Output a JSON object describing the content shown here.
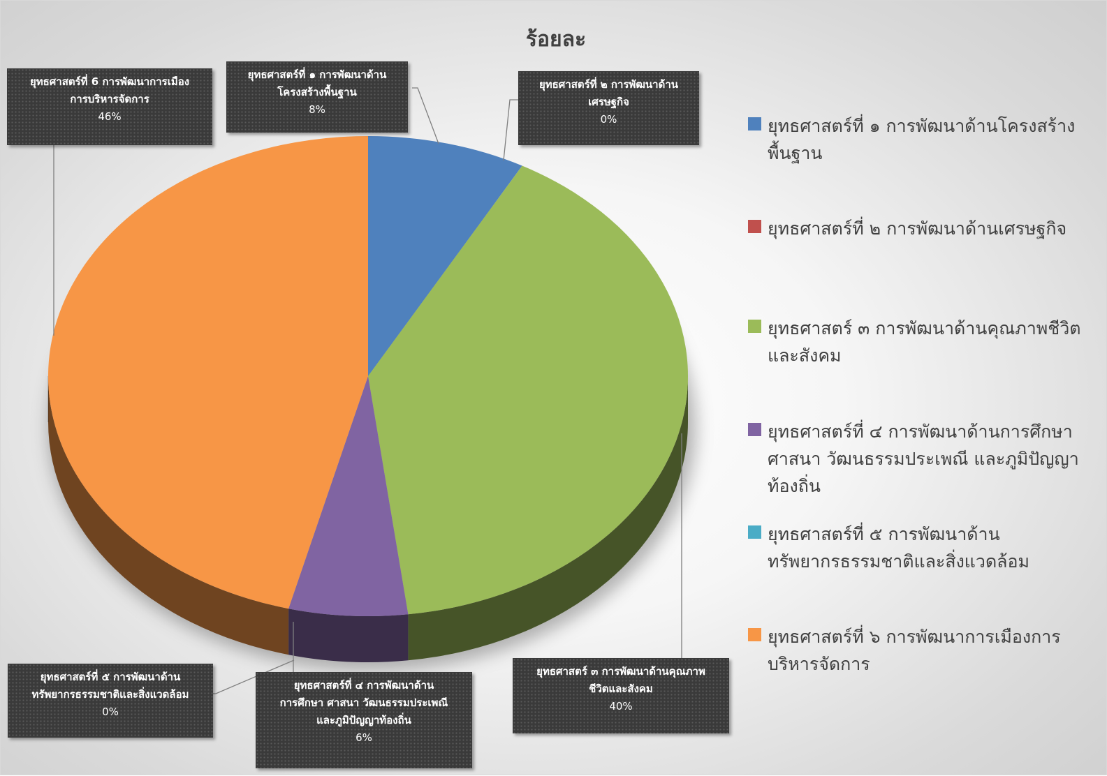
{
  "chart_data": {
    "type": "pie",
    "title": "ร้อยละ",
    "legend_position": "right",
    "categories": [
      "ยุทธศาสตร์ที่ ๑ การพัฒนาด้านโครงสร้างพื้นฐาน",
      "ยุทธศาสตร์ที่ ๒ การพัฒนาด้านเศรษฐกิจ",
      "ยุทธศาสตร์ ๓ การพัฒนาด้านคุณภาพชีวิตและสังคม",
      "ยุทธศาสตร์ที่ ๔ การพัฒนาด้านการศึกษา ศาสนา วัฒนธรรมประเพณี และภูมิปัญญาท้องถิ่น",
      "ยุทธศาสตร์ที่ ๕ การพัฒนาด้านทรัพยากรธรรมชาติและสิ่งแวดล้อม",
      "ยุทธศาสตร์ที่ 6 การพัฒนาการเมืองการบริหารจัดการ"
    ],
    "values": [
      8,
      0,
      40,
      6,
      0,
      46
    ],
    "colors": [
      "#4f81bd",
      "#c0504d",
      "#9bbb59",
      "#8064a2",
      "#4bacc6",
      "#f79646"
    ],
    "legend_labels": [
      "ยุทธศาสตร์ที่ ๑ การพัฒนาด้านโครงสร้าง\nพื้นฐาน",
      "ยุทธศาสตร์ที่ ๒ การพัฒนาด้านเศรษฐกิจ",
      "ยุทธศาสตร์ ๓ การพัฒนาด้านคุณภาพชีวิต\nและสังคม",
      "ยุทธศาสตร์ที่ ๔ การพัฒนาด้านการศึกษา\nศาสนา วัฒนธรรมประเพณี และภูมิปัญญา\nท้องถิ่น",
      "ยุทธศาสตร์ที่ ๕ การพัฒนาด้าน\nทรัพยากรธรรมชาติและสิ่งแวดล้อม",
      "ยุทธศาสตร์ที่ ๖ การพัฒนาการเมืองการ\nบริหารจัดการ"
    ],
    "data_labels": [
      {
        "category": "ยุทธศาสตร์ที่ ๑ การพัฒนาด้าน\nโครงสร้างพื้นฐาน",
        "percent": "8%"
      },
      {
        "category": "ยุทธศาสตร์ที่ ๒ การพัฒนาด้าน\nเศรษฐกิจ",
        "percent": "0%"
      },
      {
        "category": "ยุทธศาสตร์ ๓ การพัฒนาด้านคุณภาพ\nชีวิตและสังคม",
        "percent": "40%"
      },
      {
        "category": "ยุทธศาสตร์ที่ ๔ การพัฒนาด้าน\nการศึกษา ศาสนา วัฒนธรรมประเพณี\nและภูมิปัญญาท้องถิ่น",
        "percent": "6%"
      },
      {
        "category": "ยุทธศาสตร์ที่ ๕ การพัฒนาด้าน\nทรัพยากรธรรมชาติและสิ่งแวดล้อม",
        "percent": "0%"
      },
      {
        "category": "ยุทธศาสตร์ที่ 6 การพัฒนาการเมือง\nการบริหารจัดการ",
        "percent": "46%"
      }
    ]
  }
}
